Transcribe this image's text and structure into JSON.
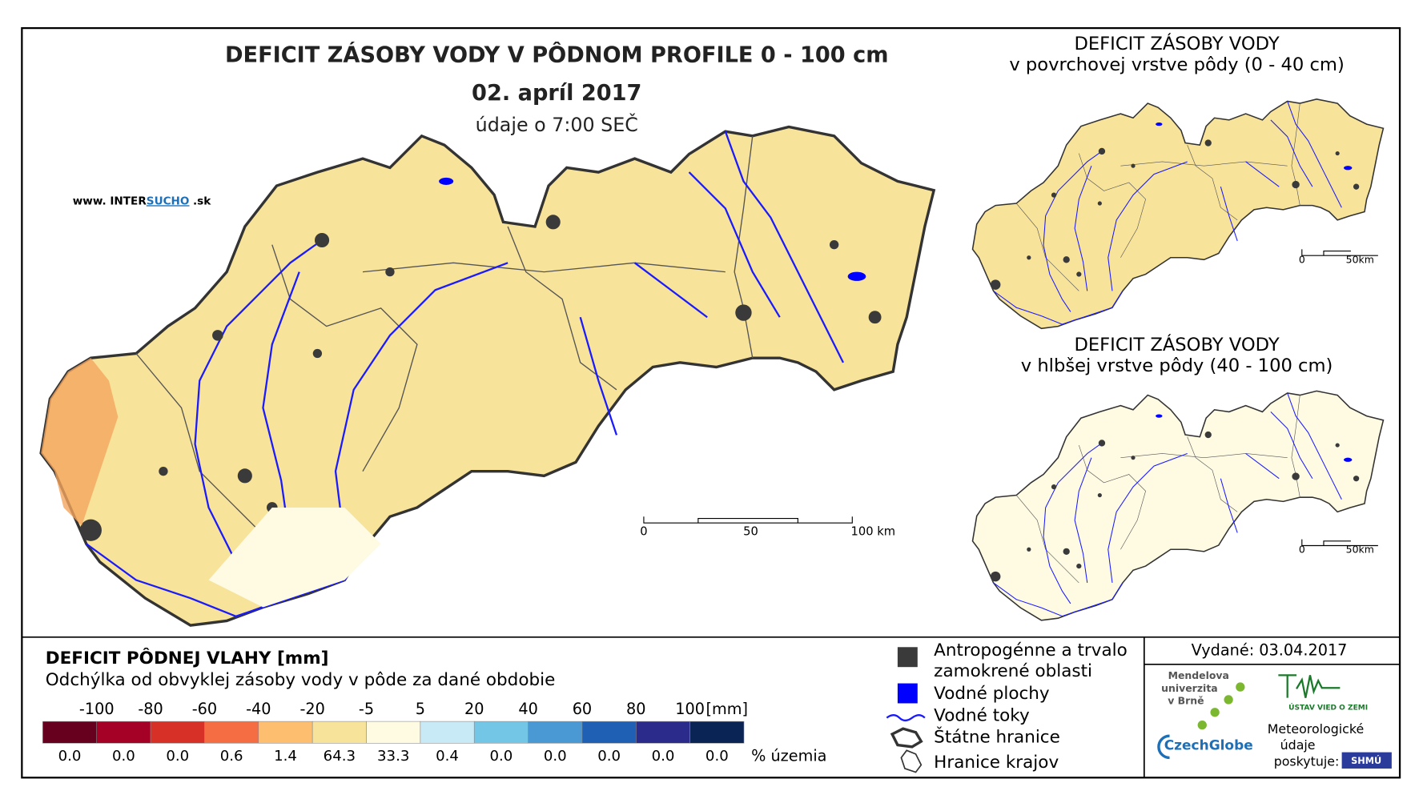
{
  "header": {
    "title": "DEFICIT ZÁSOBY VODY V PÔDNOM PROFILE 0 - 100 cm",
    "date": "02. apríl 2017",
    "time": "údaje o 7:00 SEČ",
    "website": [
      "www. INTER",
      "SUCHO",
      ".sk"
    ]
  },
  "scale_bar": [
    "0",
    "50",
    "100 km"
  ],
  "inset_top": {
    "title": "DEFICIT ZÁSOBY VODY",
    "subtitle": "v povrchovej vrstve pôdy (0 - 40 cm)",
    "scale": [
      "0",
      "50km"
    ]
  },
  "inset_bottom": {
    "title": "DEFICIT ZÁSOBY VODY",
    "subtitle": "v hlbšej vrstve pôdy (40 - 100 cm)",
    "scale": [
      "0",
      "50km"
    ]
  },
  "legend": {
    "title": "DEFICIT PÔDNEJ VLAHY [mm]",
    "subtitle": "Odchýlka od obvyklej zásoby vody v pôde za dané obdobie",
    "thresholds": [
      -100,
      -80,
      -60,
      -40,
      -20,
      -5,
      5,
      20,
      40,
      60,
      80,
      100
    ],
    "unit": "[mm]",
    "classes": [
      {
        "color": "#67001f",
        "share": "0.0"
      },
      {
        "color": "#a50026",
        "share": "0.0"
      },
      {
        "color": "#d73027",
        "share": "0.0"
      },
      {
        "color": "#f46d43",
        "share": "0.6"
      },
      {
        "color": "#fdbf6f",
        "share": "1.4"
      },
      {
        "color": "#f8e39a",
        "share": "64.3"
      },
      {
        "color": "#fffbe3",
        "share": "33.3"
      },
      {
        "color": "#c7eaf6",
        "share": "0.4"
      },
      {
        "color": "#74c6e6",
        "share": "0.0"
      },
      {
        "color": "#4a98d4",
        "share": "0.0"
      },
      {
        "color": "#1f5fb4",
        "share": "0.0"
      },
      {
        "color": "#2b2b8c",
        "share": "0.0"
      },
      {
        "color": "#0b2456",
        "share": "0.0"
      }
    ],
    "share_unit": "% územia"
  },
  "map_legend": {
    "urban": [
      "Antropogénne a trvalo",
      "zamokrené oblasti"
    ],
    "water": "Vodné plochy",
    "rivers": "Vodné toky",
    "border": "Štátne hranice",
    "regions": "Hranice krajov"
  },
  "footer": {
    "issued": "Vydané: 03.04.2017",
    "mendel": [
      "Mendelova",
      "univerzita",
      "v Brně"
    ],
    "czechglobe": "CzechGlobe",
    "uvz": "ÚSTAV VIED O ZEMI",
    "provider": [
      "Meteorologické",
      "údaje",
      "poskytuje:"
    ],
    "shmu": "SHMÚ"
  }
}
